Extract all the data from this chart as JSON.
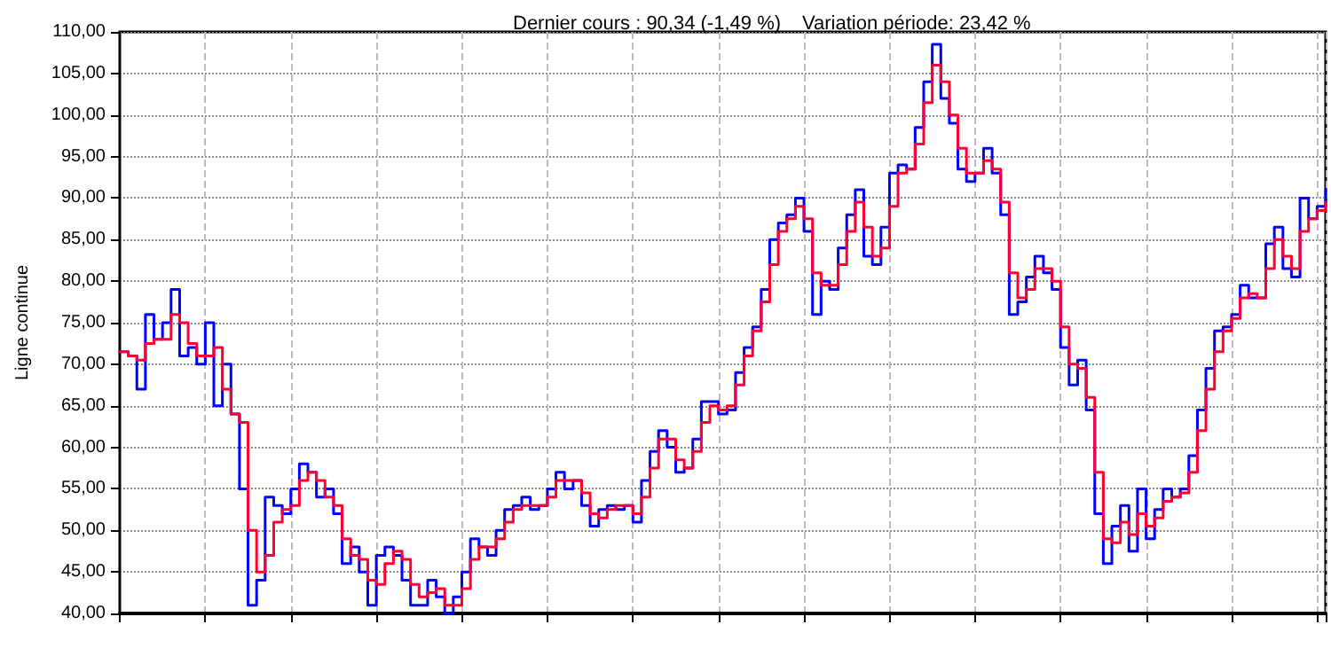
{
  "chart_data": {
    "type": "step",
    "title": "Dernier cours : 90,34 (-1,49 %)",
    "subtitle": "Variation période: 23,42 %",
    "ylabel": "Ligne continue",
    "categories": [
      null,
      null,
      null,
      null,
      null,
      null,
      null,
      null,
      null,
      null,
      null,
      null,
      null,
      null,
      null,
      null,
      null,
      null,
      null,
      null,
      null,
      null,
      null,
      null,
      null,
      null,
      null,
      null,
      null,
      null,
      null,
      null,
      null,
      null,
      null,
      null,
      null,
      null,
      null,
      null,
      null,
      null,
      null,
      null,
      null,
      null,
      null,
      null,
      null,
      null,
      null,
      null,
      null,
      null,
      null,
      null,
      null,
      null,
      null,
      null,
      null,
      null,
      null,
      null,
      null,
      null,
      null,
      null,
      null,
      null,
      null,
      null,
      null,
      null,
      null,
      null,
      null,
      null,
      null,
      null,
      null,
      null,
      null,
      null,
      null,
      null,
      null,
      null,
      null,
      null,
      null,
      null,
      null,
      null,
      null,
      null,
      null,
      null,
      null,
      null,
      null,
      null,
      null,
      null,
      null,
      null,
      null,
      null,
      null,
      null,
      null,
      null,
      null,
      null,
      null,
      null,
      null,
      null,
      null,
      null,
      null,
      null,
      null,
      null,
      null,
      null,
      null,
      null,
      null,
      null,
      null,
      null,
      null,
      null,
      null,
      null,
      null,
      null,
      null,
      null,
      null,
      null
    ],
    "series": [
      {
        "color": "#0000ff",
        "values": [
          71.5,
          71,
          67,
          76,
          73,
          75,
          79,
          71,
          72,
          70,
          75,
          65,
          70,
          64,
          55,
          41,
          44,
          54,
          53,
          52,
          55,
          58,
          57,
          54,
          55,
          52,
          46,
          48,
          45,
          41,
          47,
          48,
          47,
          44,
          41,
          41,
          44,
          42,
          40,
          42,
          45,
          49,
          48,
          47,
          50,
          52.5,
          53,
          54,
          52.5,
          53,
          55,
          57,
          55,
          56,
          53,
          50.5,
          52.5,
          53,
          52.5,
          53,
          51,
          56,
          59.5,
          62,
          60,
          57,
          57.5,
          61,
          65.5,
          65.5,
          64,
          64.5,
          69,
          72,
          74.5,
          79,
          85,
          87,
          88,
          90,
          86,
          76,
          80,
          79,
          84,
          88,
          91,
          83,
          82,
          86.5,
          93,
          94,
          93.5,
          98.5,
          104,
          108.5,
          102,
          99,
          93.5,
          92,
          93,
          96,
          93,
          88,
          76,
          77.5,
          80.5,
          83,
          81,
          79,
          72,
          67.5,
          70.5,
          64.5,
          52,
          46,
          50.5,
          53,
          47.5,
          55,
          49,
          52.5,
          55,
          54,
          55,
          59,
          64.5,
          69.5,
          74,
          74.5,
          76,
          79.5,
          78,
          78,
          84.5,
          86.5,
          81.5,
          80.5,
          90,
          87.5,
          89,
          91
        ]
      },
      {
        "color": "#ff0033",
        "values": [
          71.5,
          71,
          70.5,
          72.5,
          73,
          73,
          76,
          75,
          72.5,
          71,
          71,
          72,
          67,
          64,
          63,
          50,
          45,
          47,
          51,
          52.5,
          53,
          56,
          57,
          56,
          54,
          53,
          49,
          47,
          46.5,
          44,
          43.5,
          46,
          47.5,
          46.5,
          43.5,
          42,
          42.5,
          43,
          41,
          41,
          43,
          46.5,
          48,
          48,
          49,
          51,
          52.5,
          53,
          53,
          53,
          54,
          56,
          56,
          56,
          54.5,
          52,
          51.5,
          52.5,
          53,
          53,
          52,
          54,
          57.5,
          61,
          61,
          58.5,
          57.5,
          59.5,
          63,
          65,
          64.5,
          65,
          67.5,
          71,
          74,
          77.5,
          82,
          86,
          87.5,
          89,
          87.5,
          81,
          79.5,
          79.5,
          82,
          86,
          89.5,
          86.5,
          83,
          84,
          89,
          93,
          93.5,
          96.5,
          101.5,
          106,
          104,
          100,
          96,
          93,
          93,
          94.5,
          93.5,
          89.5,
          81,
          78,
          79,
          81.5,
          81.5,
          80,
          74.5,
          70,
          69.5,
          66,
          57,
          49,
          48.5,
          51,
          49.5,
          52,
          50.5,
          51.5,
          53.5,
          54,
          54.5,
          57,
          62,
          67,
          71.5,
          74,
          75.5,
          78,
          78.5,
          78,
          81.5,
          85,
          83,
          81.5,
          86,
          87.5,
          88.5,
          89.5
        ]
      }
    ],
    "ylim": [
      40,
      110
    ],
    "yticks": [
      {
        "value": 40,
        "label": "40,00"
      },
      {
        "value": 45,
        "label": "45,00"
      },
      {
        "value": 50,
        "label": "50,00"
      },
      {
        "value": 55,
        "label": "55,00"
      },
      {
        "value": 60,
        "label": "60,00"
      },
      {
        "value": 65,
        "label": "65,00"
      },
      {
        "value": 70,
        "label": "70,00"
      },
      {
        "value": 75,
        "label": "75,00"
      },
      {
        "value": 80,
        "label": "80,00"
      },
      {
        "value": 85,
        "label": "85,00"
      },
      {
        "value": 90,
        "label": "90,00"
      },
      {
        "value": 95,
        "label": "95,00"
      },
      {
        "value": 100,
        "label": "100,00"
      },
      {
        "value": 105,
        "label": "105,00"
      },
      {
        "value": 110,
        "label": "110,00"
      }
    ],
    "grid": true,
    "marker": "none",
    "line_style": "solid"
  }
}
